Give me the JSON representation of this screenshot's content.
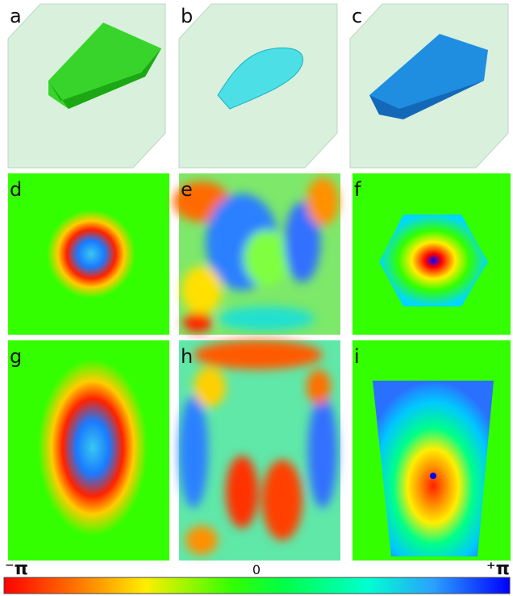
{
  "panels": {
    "a": "a",
    "b": "b",
    "c": "c",
    "d": "d",
    "e": "e",
    "f": "f",
    "g": "g",
    "h": "h",
    "i": "i"
  },
  "colorbar": {
    "min_label": "⁻π",
    "mid_label": "0",
    "max_label": "⁺π"
  }
}
